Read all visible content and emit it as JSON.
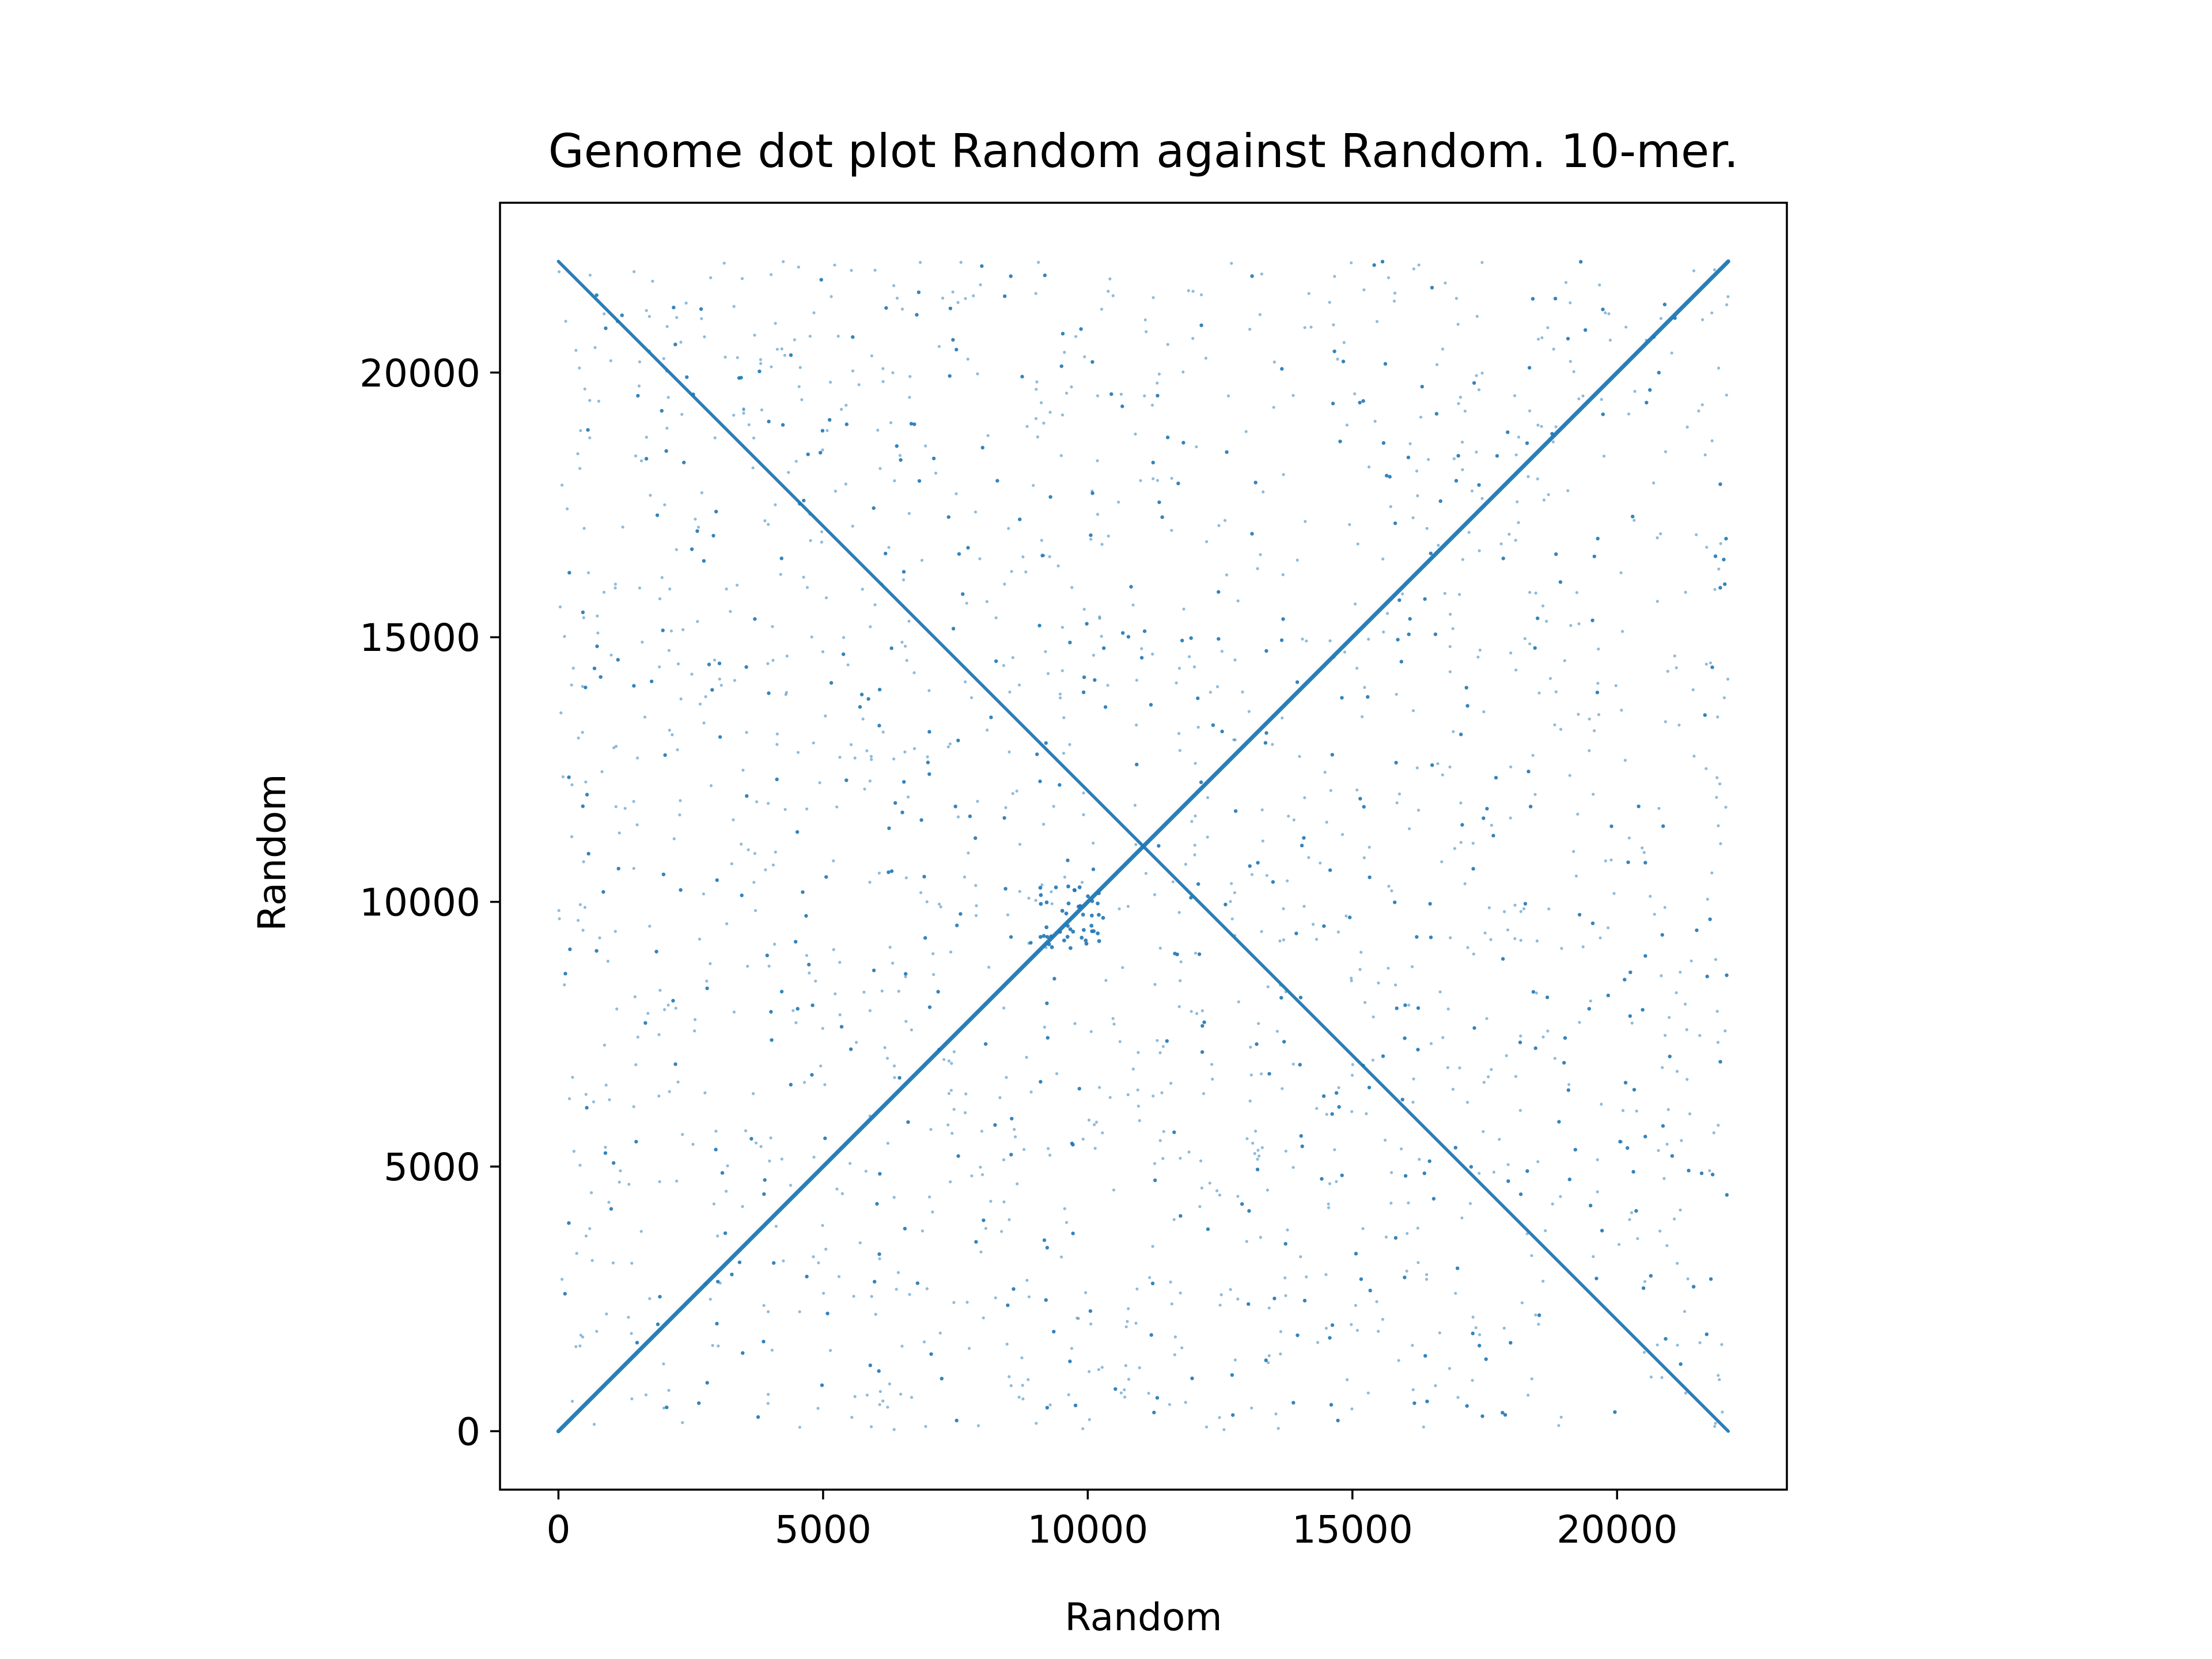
{
  "chart_data": {
    "type": "scatter",
    "title": "Genome dot plot Random against Random. 10-mer.",
    "xlabel": "Random",
    "ylabel": "Random",
    "xlim": [
      -1104,
      23208
    ],
    "ylim": [
      -1104,
      23208
    ],
    "xticks": [
      0,
      5000,
      10000,
      15000,
      20000
    ],
    "yticks": [
      0,
      5000,
      10000,
      15000,
      20000
    ],
    "xtick_labels": [
      "0",
      "5000",
      "10000",
      "15000",
      "20000"
    ],
    "ytick_labels": [
      "0",
      "5000",
      "10000",
      "15000",
      "20000"
    ],
    "grid": false,
    "legend": "none",
    "series_color": "#1f77b4",
    "series": [
      {
        "kind": "forward-diagonal",
        "points": [
          [
            0,
            0
          ],
          [
            22100,
            22100
          ]
        ]
      },
      {
        "kind": "reverse-diagonal",
        "points": [
          [
            0,
            22100
          ],
          [
            22100,
            0
          ]
        ]
      },
      {
        "kind": "random-matches",
        "count": 1800,
        "x_range": [
          0,
          22100
        ],
        "y_range": [
          0,
          22100
        ],
        "dense_cluster": [
          9700,
          9700
        ]
      }
    ]
  }
}
